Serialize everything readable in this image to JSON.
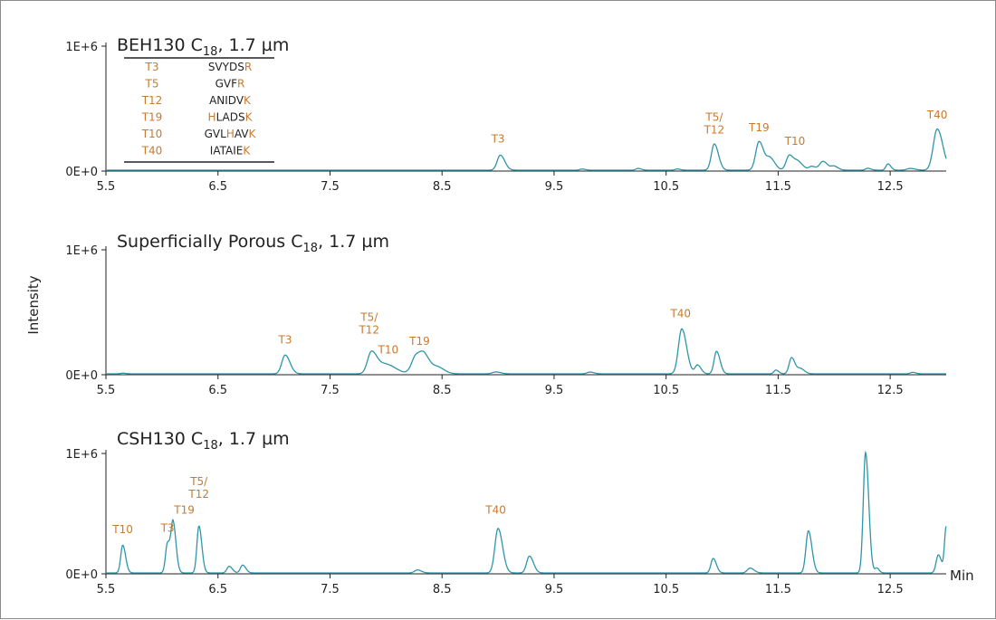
{
  "chart_data": {
    "type": "line",
    "ylabel": "Intensity",
    "x_unit": "Min",
    "xlim": [
      5.5,
      13.0
    ],
    "x_ticks": [
      "5.5",
      "6.5",
      "7.5",
      "8.5",
      "9.5",
      "10.5",
      "11.5",
      "12.5"
    ],
    "y_ticks": [
      "0E+0",
      "1E+6"
    ],
    "ylim": [
      0,
      1000000
    ],
    "colors": {
      "trace": "#2e96a8",
      "highlight": "#c87a2e"
    },
    "legend_table": {
      "rows": [
        {
          "label": "T3",
          "parts": [
            {
              "t": "SVYDS",
              "h": false
            },
            {
              "t": "R",
              "h": true
            }
          ]
        },
        {
          "label": "T5",
          "parts": [
            {
              "t": "GVF",
              "h": false
            },
            {
              "t": "R",
              "h": true
            }
          ]
        },
        {
          "label": "T12",
          "parts": [
            {
              "t": "ANIDV",
              "h": false
            },
            {
              "t": "K",
              "h": true
            }
          ]
        },
        {
          "label": "T19",
          "parts": [
            {
              "t": "H",
              "h": true
            },
            {
              "t": "LADS",
              "h": false
            },
            {
              "t": "K",
              "h": true
            }
          ]
        },
        {
          "label": "T10",
          "parts": [
            {
              "t": "GVL",
              "h": false
            },
            {
              "t": "H",
              "h": true
            },
            {
              "t": "AV",
              "h": false
            },
            {
              "t": "K",
              "h": true
            }
          ]
        },
        {
          "label": "T40",
          "parts": [
            {
              "t": "IATAIE",
              "h": false
            },
            {
              "t": "K",
              "h": true
            }
          ]
        }
      ]
    },
    "panels": [
      {
        "title": "BEH130 C",
        "title_sub": "18",
        "title_suffix": ", 1.7 µm",
        "peaks": [
          [
            9.02,
            120000,
            0.028
          ],
          [
            9.75,
            9000,
            0.02
          ],
          [
            10.25,
            14000,
            0.02
          ],
          [
            10.6,
            9000,
            0.02
          ],
          [
            10.93,
            210000,
            0.026
          ],
          [
            11.33,
            230000,
            0.03
          ],
          [
            11.43,
            90000,
            0.03
          ],
          [
            11.6,
            120000,
            0.028
          ],
          [
            11.68,
            60000,
            0.03
          ],
          [
            11.8,
            30000,
            0.025
          ],
          [
            11.9,
            70000,
            0.03
          ],
          [
            12.0,
            30000,
            0.025
          ],
          [
            12.3,
            15000,
            0.02
          ],
          [
            12.48,
            50000,
            0.018
          ],
          [
            12.68,
            14000,
            0.03
          ],
          [
            12.92,
            330000,
            0.035
          ]
        ],
        "annotations": [
          {
            "lines": [
              "T3"
            ],
            "x": 9.0,
            "y": 230000
          },
          {
            "lines": [
              "T5/",
              "T12"
            ],
            "x": 10.93,
            "y": 300000
          },
          {
            "lines": [
              "T19"
            ],
            "x": 11.33,
            "y": 320000
          },
          {
            "lines": [
              "T10"
            ],
            "x": 11.65,
            "y": 210000
          },
          {
            "lines": [
              "T40"
            ],
            "x": 12.92,
            "y": 420000
          }
        ]
      },
      {
        "title": "Superficially Porous C",
        "title_sub": "18",
        "title_suffix": ", 1.7 µm",
        "peaks": [
          [
            5.65,
            5000,
            0.02
          ],
          [
            7.1,
            150000,
            0.03
          ],
          [
            7.87,
            175000,
            0.035
          ],
          [
            8.0,
            75000,
            0.06
          ],
          [
            8.27,
            145000,
            0.04
          ],
          [
            8.35,
            110000,
            0.04
          ],
          [
            8.47,
            45000,
            0.04
          ],
          [
            8.98,
            15000,
            0.03
          ],
          [
            9.82,
            14000,
            0.025
          ],
          [
            10.64,
            360000,
            0.03
          ],
          [
            10.78,
            70000,
            0.022
          ],
          [
            10.95,
            180000,
            0.022
          ],
          [
            11.48,
            30000,
            0.018
          ],
          [
            11.62,
            130000,
            0.022
          ],
          [
            11.7,
            40000,
            0.025
          ],
          [
            12.7,
            12000,
            0.02
          ]
        ],
        "annotations": [
          {
            "lines": [
              "T3"
            ],
            "x": 7.1,
            "y": 250000
          },
          {
            "lines": [
              "T5/",
              "T12"
            ],
            "x": 7.85,
            "y": 330000
          },
          {
            "lines": [
              "T10"
            ],
            "x": 8.02,
            "y": 170000
          },
          {
            "lines": [
              "T19"
            ],
            "x": 8.3,
            "y": 240000
          },
          {
            "lines": [
              "T40"
            ],
            "x": 10.63,
            "y": 460000
          }
        ]
      },
      {
        "title": "CSH130 C",
        "title_sub": "18",
        "title_suffix": ", 1.7 µm",
        "peaks": [
          [
            5.65,
            230000,
            0.018
          ],
          [
            6.05,
            250000,
            0.018
          ],
          [
            6.1,
            400000,
            0.018
          ],
          [
            6.33,
            390000,
            0.018
          ],
          [
            6.6,
            55000,
            0.02
          ],
          [
            6.72,
            65000,
            0.02
          ],
          [
            8.28,
            25000,
            0.025
          ],
          [
            9.0,
            370000,
            0.028
          ],
          [
            9.28,
            140000,
            0.025
          ],
          [
            10.92,
            120000,
            0.02
          ],
          [
            11.25,
            40000,
            0.025
          ],
          [
            11.77,
            350000,
            0.022
          ],
          [
            12.28,
            1000000,
            0.02
          ],
          [
            12.38,
            40000,
            0.015
          ],
          [
            12.93,
            150000,
            0.02
          ],
          [
            13.0,
            380000,
            0.015
          ]
        ],
        "annotations": [
          {
            "lines": [
              "T10"
            ],
            "x": 5.65,
            "y": 340000
          },
          {
            "lines": [
              "T3"
            ],
            "x": 6.05,
            "y": 350000
          },
          {
            "lines": [
              "T19"
            ],
            "x": 6.2,
            "y": 500000
          },
          {
            "lines": [
              "T5/",
              "T12"
            ],
            "x": 6.33,
            "y": 630000
          },
          {
            "lines": [
              "T40"
            ],
            "x": 8.98,
            "y": 500000
          }
        ]
      }
    ]
  }
}
